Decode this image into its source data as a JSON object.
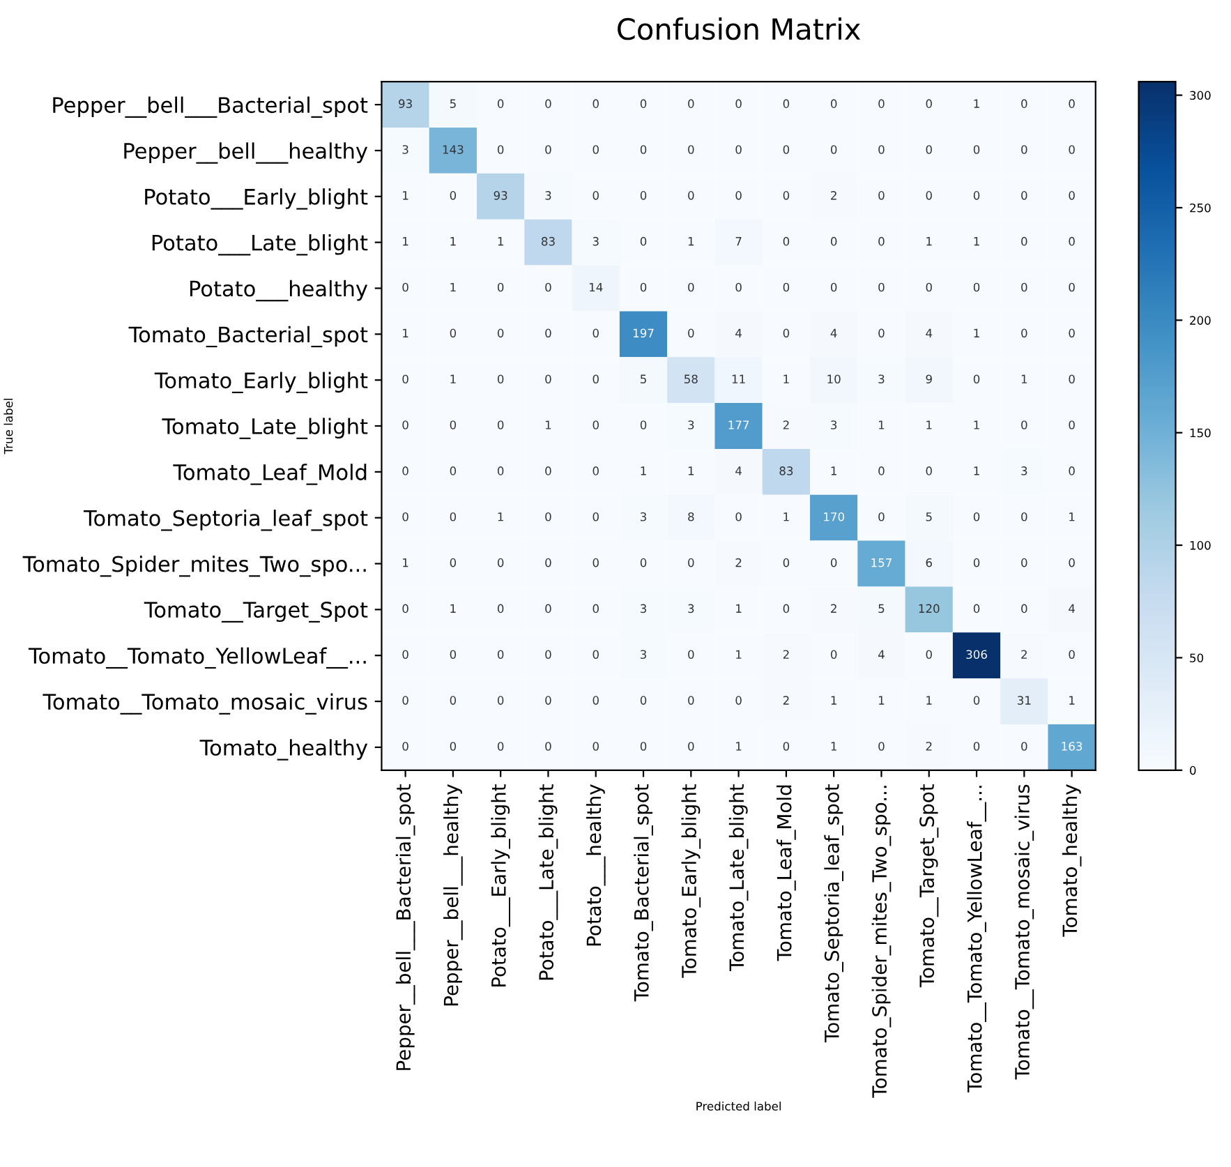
{
  "chart_data": {
    "type": "heatmap",
    "title": "Confusion Matrix",
    "xlabel": "Predicted label",
    "ylabel": "True label",
    "categories": [
      "Pepper__bell___Bacterial_spot",
      "Pepper__bell___healthy",
      "Potato___Early_blight",
      "Potato___Late_blight",
      "Potato___healthy",
      "Tomato_Bacterial_spot",
      "Tomato_Early_blight",
      "Tomato_Late_blight",
      "Tomato_Leaf_Mold",
      "Tomato_Septoria_leaf_spot",
      "Tomato_Spider_mites_Two_spo...",
      "Tomato__Target_Spot",
      "Tomato__Tomato_YellowLeaf__...",
      "Tomato__Tomato_mosaic_virus",
      "Tomato_healthy"
    ],
    "y_categories": [
      "Pepper__bell___Bacterial_spot",
      "Pepper__bell___healthy",
      "Potato___Early_blight",
      "Potato___Late_blight",
      "Potato___healthy",
      "Tomato_Bacterial_spot",
      "Tomato_Early_blight",
      "Tomato_Late_blight",
      "Tomato_Leaf_Mold",
      "Tomato_Septoria_leaf_spot",
      "Tomato_Spider_mites_Two_spo...",
      "Tomato__Target_Spot",
      "Tomato__Tomato_YellowLeaf__...",
      "Tomato__Tomato_mosaic_virus",
      "Tomato_healthy"
    ],
    "cells": [
      [
        93,
        5,
        0,
        0,
        0,
        0,
        0,
        0,
        0,
        0,
        0,
        0,
        1,
        0,
        0
      ],
      [
        3,
        143,
        0,
        0,
        0,
        0,
        0,
        0,
        0,
        0,
        0,
        0,
        0,
        0,
        0
      ],
      [
        1,
        0,
        93,
        3,
        0,
        0,
        0,
        0,
        0,
        2,
        0,
        0,
        0,
        0,
        0
      ],
      [
        1,
        1,
        1,
        83,
        3,
        0,
        1,
        7,
        0,
        0,
        0,
        1,
        1,
        0,
        0
      ],
      [
        0,
        1,
        0,
        0,
        14,
        0,
        0,
        0,
        0,
        0,
        0,
        0,
        0,
        0,
        0
      ],
      [
        1,
        0,
        0,
        0,
        0,
        197,
        0,
        4,
        0,
        4,
        0,
        4,
        1,
        0,
        0
      ],
      [
        0,
        1,
        0,
        0,
        0,
        5,
        58,
        11,
        1,
        10,
        3,
        9,
        0,
        1,
        0
      ],
      [
        0,
        0,
        0,
        1,
        0,
        0,
        3,
        177,
        2,
        3,
        1,
        1,
        1,
        0,
        0
      ],
      [
        0,
        0,
        0,
        0,
        0,
        1,
        1,
        4,
        83,
        1,
        0,
        0,
        1,
        3,
        0
      ],
      [
        0,
        0,
        1,
        0,
        0,
        3,
        8,
        0,
        1,
        170,
        0,
        5,
        0,
        0,
        1
      ],
      [
        1,
        0,
        0,
        0,
        0,
        0,
        0,
        2,
        0,
        0,
        157,
        6,
        0,
        0,
        0
      ],
      [
        0,
        1,
        0,
        0,
        0,
        3,
        3,
        1,
        0,
        2,
        5,
        120,
        0,
        0,
        4
      ],
      [
        0,
        0,
        0,
        0,
        0,
        3,
        0,
        1,
        2,
        0,
        4,
        0,
        306,
        2,
        0
      ],
      [
        0,
        0,
        0,
        0,
        0,
        0,
        0,
        0,
        2,
        1,
        1,
        1,
        0,
        31,
        1
      ],
      [
        0,
        0,
        0,
        0,
        0,
        0,
        0,
        1,
        0,
        1,
        0,
        2,
        0,
        0,
        163
      ]
    ],
    "clim": [
      0,
      306
    ],
    "cticks": [
      0,
      50,
      100,
      150,
      200,
      250,
      300
    ],
    "data_labels": true
  }
}
